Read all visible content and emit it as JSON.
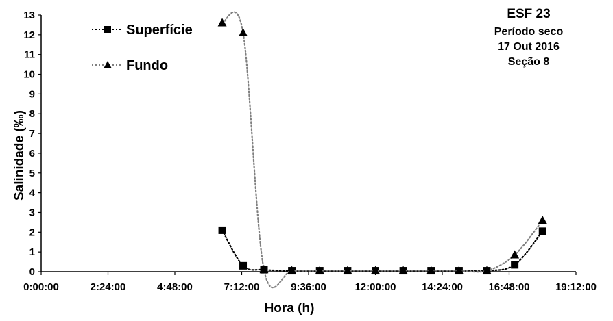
{
  "chart_data": {
    "type": "line",
    "title": "ESF 23",
    "subtitle_lines": [
      "Período seco",
      "17 Out 2016",
      "Seção 8"
    ],
    "xlabel": "Hora (h)",
    "ylabel": "Salinidade (‰)",
    "xlim": [
      "0:00:00",
      "19:12:00"
    ],
    "ylim": [
      0,
      13
    ],
    "x_tick_labels": [
      "0:00:00",
      "2:24:00",
      "4:48:00",
      "7:12:00",
      "9:36:00",
      "12:00:00",
      "14:24:00",
      "16:48:00",
      "19:12:00"
    ],
    "y_tick_labels": [
      "0",
      "1",
      "2",
      "3",
      "4",
      "5",
      "6",
      "7",
      "8",
      "9",
      "10",
      "11",
      "12",
      "13"
    ],
    "grid": false,
    "legend_position": "top-left",
    "series": [
      {
        "name": "Superfície",
        "marker": "square",
        "line_style": "dotted",
        "color": "#000000",
        "line_color": "#000000",
        "x": [
          "6:30:00",
          "7:15:00",
          "8:00:00",
          "9:00:00",
          "10:00:00",
          "11:00:00",
          "12:00:00",
          "13:00:00",
          "14:00:00",
          "15:00:00",
          "16:00:00",
          "17:00:00",
          "18:00:00"
        ],
        "y": [
          2.1,
          0.3,
          0.1,
          0.05,
          0.05,
          0.05,
          0.05,
          0.05,
          0.05,
          0.05,
          0.05,
          0.35,
          2.05
        ]
      },
      {
        "name": "Fundo",
        "marker": "triangle",
        "line_style": "dotted",
        "color": "#000000",
        "line_color": "#808080",
        "x": [
          "6:30:00",
          "7:15:00",
          "8:00:00",
          "9:00:00",
          "10:00:00",
          "11:00:00",
          "12:00:00",
          "13:00:00",
          "14:00:00",
          "15:00:00",
          "16:00:00",
          "17:00:00",
          "18:00:00"
        ],
        "y": [
          12.6,
          12.1,
          0.1,
          0.05,
          0.05,
          0.05,
          0.05,
          0.05,
          0.05,
          0.05,
          0.05,
          0.85,
          2.6
        ]
      }
    ]
  }
}
